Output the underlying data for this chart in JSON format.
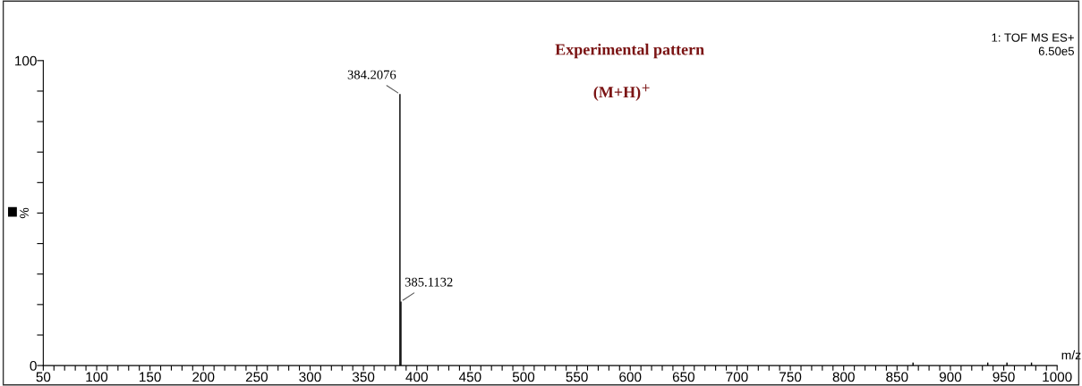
{
  "chart_data": {
    "type": "bar",
    "title": "Experimental pattern",
    "subtitle": "(M+H)$^{+}$",
    "xlabel": "m/z",
    "ylabel": "%",
    "annotations": [
      "1: TOF MS ES+",
      "6.50e5",
      {
        "text": "384.2076",
        "x": 384.2076,
        "y": 89
      },
      {
        "text": "385.1132",
        "x": 385.1132,
        "y": 21
      }
    ],
    "x": [
      384.2076,
      385.1132,
      865,
      935,
      953,
      976
    ],
    "series": [
      {
        "color": "#000000",
        "values": [
          89,
          21,
          1,
          1,
          1,
          1
        ]
      }
    ],
    "xlim": [
      50,
      1000
    ],
    "ylim": [
      0,
      100
    ],
    "xticks": [
      50,
      {
        "value": 60,
        "label": null
      },
      {
        "value": 70,
        "label": null
      },
      {
        "value": 80,
        "label": null
      },
      {
        "value": 90,
        "label": null
      },
      100,
      {
        "value": 110,
        "label": null
      },
      {
        "value": 120,
        "label": null
      },
      {
        "value": 130,
        "label": null
      },
      {
        "value": 140,
        "label": null
      },
      150,
      {
        "value": 160,
        "label": null
      },
      {
        "value": 170,
        "label": null
      },
      {
        "value": 180,
        "label": null
      },
      {
        "value": 190,
        "label": null
      },
      200,
      {
        "value": 210,
        "label": null
      },
      {
        "value": 220,
        "label": null
      },
      {
        "value": 230,
        "label": null
      },
      {
        "value": 240,
        "label": null
      },
      250,
      {
        "value": 260,
        "label": null
      },
      {
        "value": 270,
        "label": null
      },
      {
        "value": 280,
        "label": null
      },
      {
        "value": 290,
        "label": null
      },
      300,
      {
        "value": 310,
        "label": null
      },
      {
        "value": 320,
        "label": null
      },
      {
        "value": 330,
        "label": null
      },
      {
        "value": 340,
        "label": null
      },
      350,
      {
        "value": 360,
        "label": null
      },
      {
        "value": 370,
        "label": null
      },
      {
        "value": 380,
        "label": null
      },
      {
        "value": 390,
        "label": null
      },
      400,
      {
        "value": 410,
        "label": null
      },
      {
        "value": 420,
        "label": null
      },
      {
        "value": 430,
        "label": null
      },
      {
        "value": 440,
        "label": null
      },
      450,
      {
        "value": 460,
        "label": null
      },
      {
        "value": 470,
        "label": null
      },
      {
        "value": 480,
        "label": null
      },
      {
        "value": 490,
        "label": null
      },
      500,
      {
        "value": 510,
        "label": null
      },
      {
        "value": 520,
        "label": null
      },
      {
        "value": 530,
        "label": null
      },
      {
        "value": 540,
        "label": null
      },
      550,
      {
        "value": 560,
        "label": null
      },
      {
        "value": 570,
        "label": null
      },
      {
        "value": 580,
        "label": null
      },
      {
        "value": 590,
        "label": null
      },
      600,
      {
        "value": 610,
        "label": null
      },
      {
        "value": 620,
        "label": null
      },
      {
        "value": 630,
        "label": null
      },
      {
        "value": 640,
        "label": null
      },
      650,
      {
        "value": 660,
        "label": null
      },
      {
        "value": 670,
        "label": null
      },
      {
        "value": 680,
        "label": null
      },
      {
        "value": 690,
        "label": null
      },
      700,
      {
        "value": 710,
        "label": null
      },
      {
        "value": 720,
        "label": null
      },
      {
        "value": 730,
        "label": null
      },
      {
        "value": 740,
        "label": null
      },
      750,
      {
        "value": 760,
        "label": null
      },
      {
        "value": 770,
        "label": null
      },
      {
        "value": 780,
        "label": null
      },
      {
        "value": 790,
        "label": null
      },
      800,
      {
        "value": 810,
        "label": null
      },
      {
        "value": 820,
        "label": null
      },
      {
        "value": 830,
        "label": null
      },
      {
        "value": 840,
        "label": null
      },
      850,
      {
        "value": 860,
        "label": null
      },
      {
        "value": 870,
        "label": null
      },
      {
        "value": 880,
        "label": null
      },
      {
        "value": 890,
        "label": null
      },
      900,
      {
        "value": 910,
        "label": null
      },
      {
        "value": 920,
        "label": null
      },
      {
        "value": 930,
        "label": null
      },
      {
        "value": 940,
        "label": null
      },
      950,
      {
        "value": 960,
        "label": null
      },
      {
        "value": 970,
        "label": null
      },
      {
        "value": 980,
        "label": null
      },
      {
        "value": 990,
        "label": null
      },
      1000
    ],
    "yticks": [
      0,
      {
        "value": 10,
        "label": null
      },
      {
        "value": 20,
        "label": null
      },
      {
        "value": 30,
        "label": null
      },
      {
        "value": 40,
        "label": null
      },
      {
        "value": 50,
        "label": null
      },
      {
        "value": 60,
        "label": null
      },
      {
        "value": 70,
        "label": null
      },
      {
        "value": 80,
        "label": null
      },
      {
        "value": 90,
        "label": null
      },
      100
    ],
    "grid": false,
    "legend": false
  }
}
